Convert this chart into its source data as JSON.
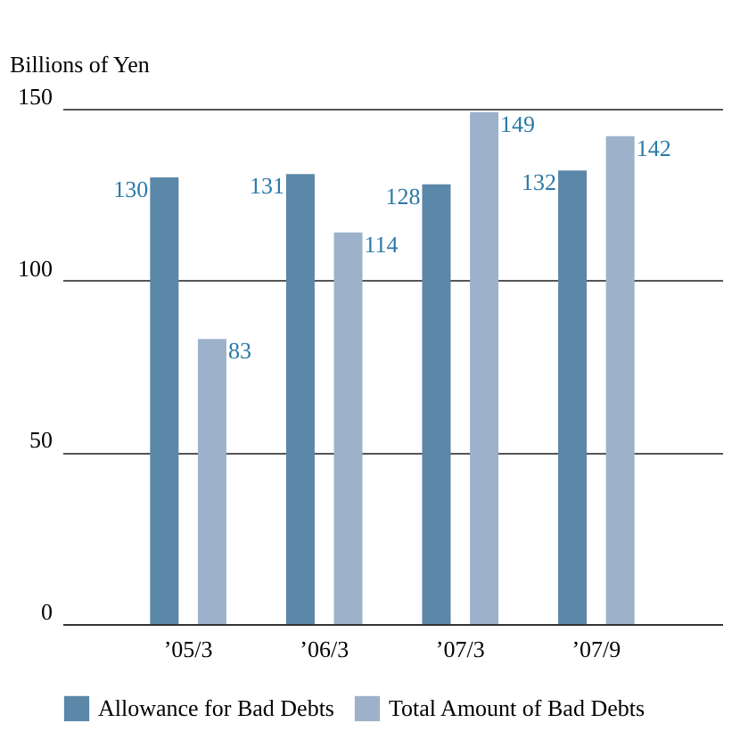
{
  "chart_data": {
    "type": "bar",
    "ylabel": "Billions of Yen",
    "categories": [
      "’05/3",
      "’06/3",
      "’07/3",
      "’07/9"
    ],
    "series": [
      {
        "name": "Allowance for Bad Debts",
        "color": "#5b87a8",
        "values": [
          130,
          131,
          128,
          132
        ]
      },
      {
        "name": "Total Amount of Bad Debts",
        "color": "#9db1cb",
        "values": [
          83,
          114,
          149,
          142
        ]
      }
    ],
    "ylim": [
      0,
      150
    ],
    "yticks": [
      0,
      50,
      100,
      150
    ],
    "grid": "y",
    "legend": "bottom",
    "data_labels": true
  }
}
